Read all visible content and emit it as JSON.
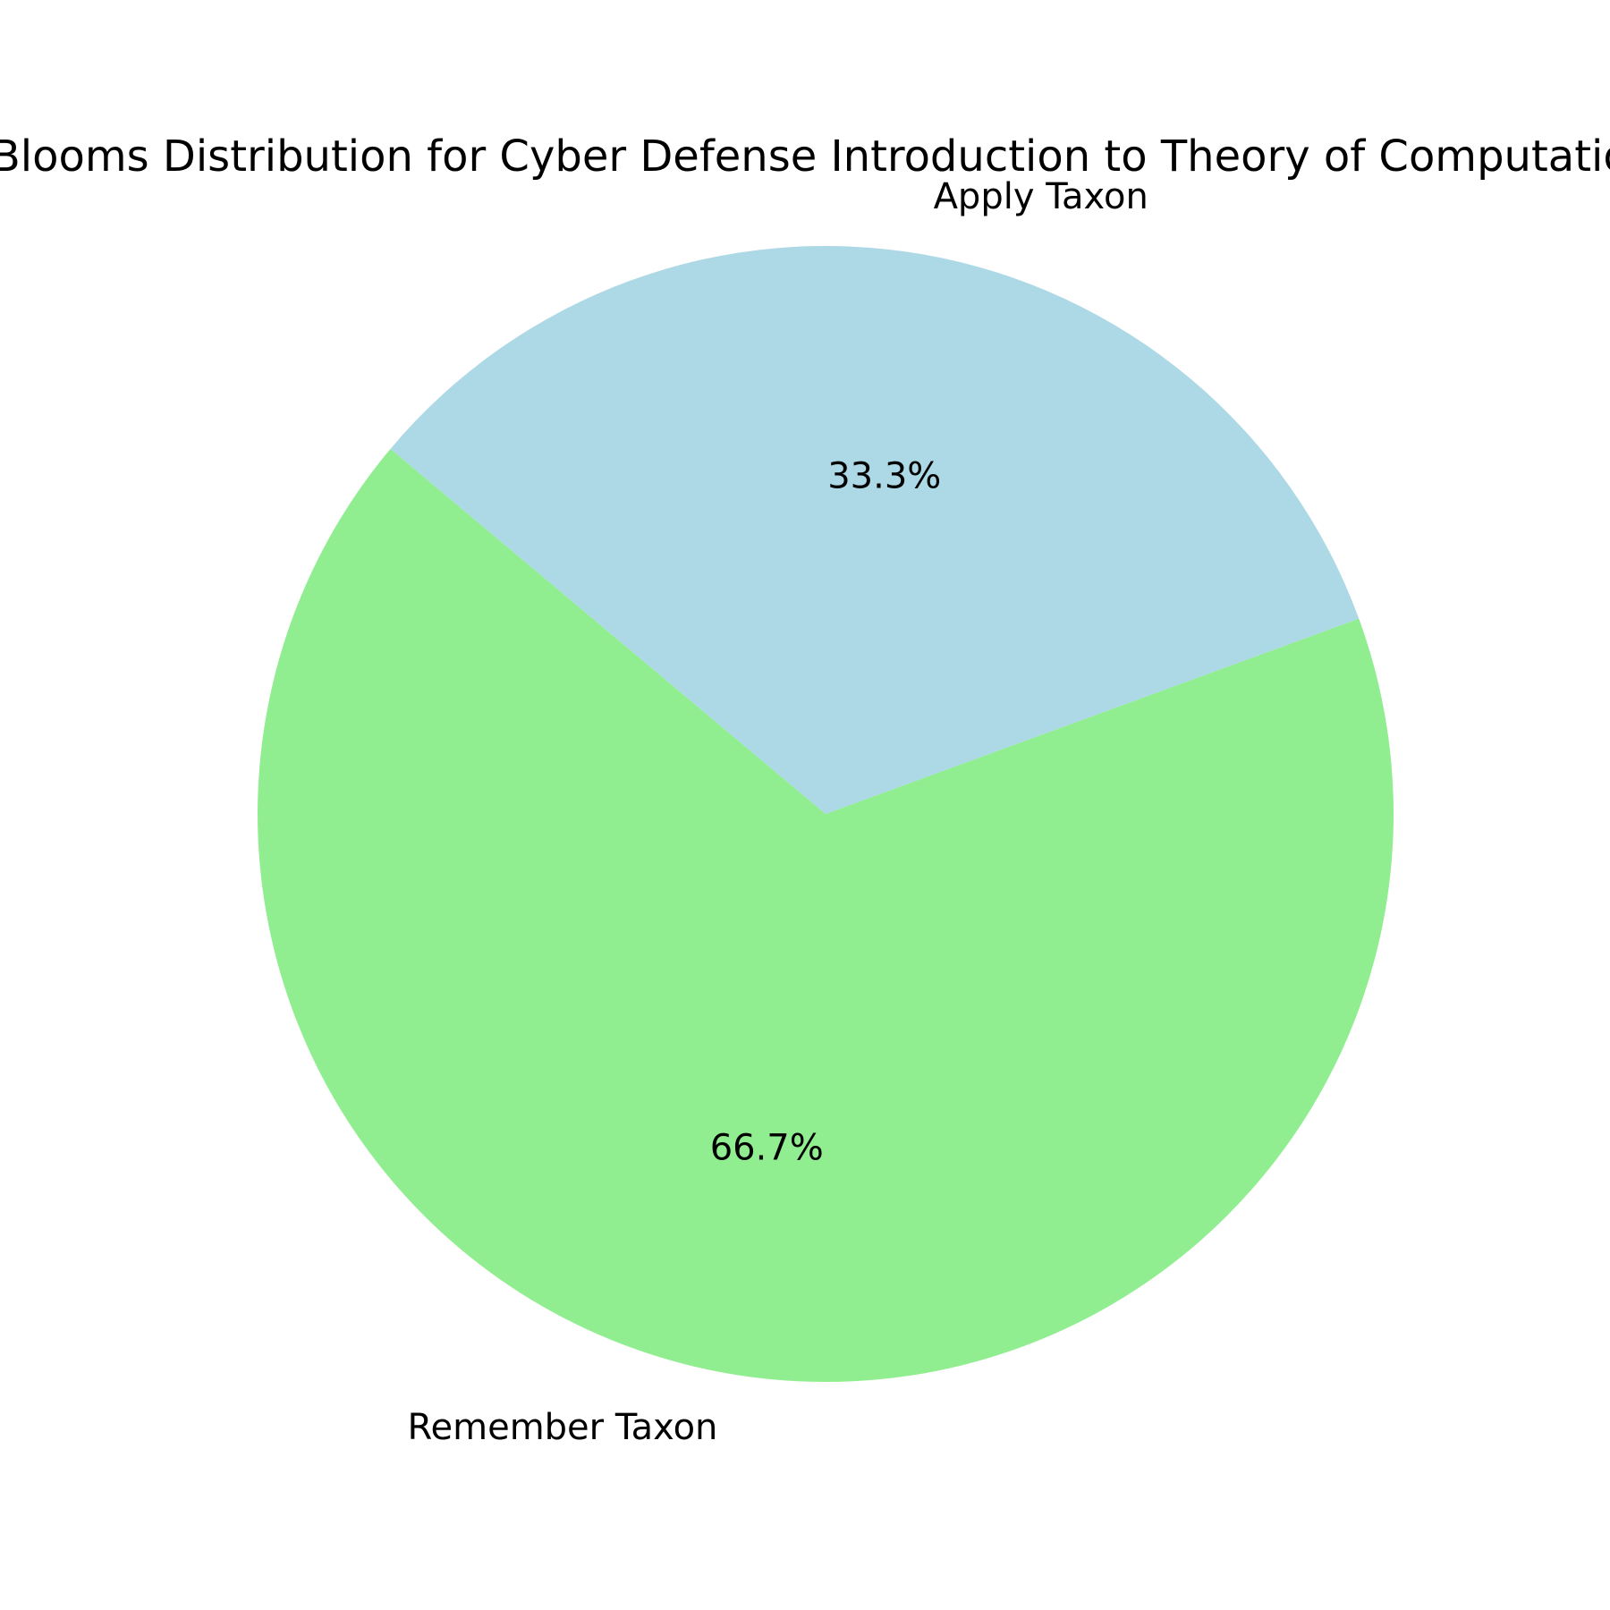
{
  "chart_data": {
    "type": "pie",
    "title": "Blooms Distribution for Cyber Defense Introduction to Theory of Computation",
    "slices": [
      {
        "label": "Remember Taxon",
        "value": 66.7,
        "percent_label": "66.7%",
        "color": "#90ee90"
      },
      {
        "label": "Apply Taxon",
        "value": 33.3,
        "percent_label": "33.3%",
        "color": "#add8e6"
      }
    ],
    "start_angle_deg": 140,
    "direction": "counterclockwise",
    "legend": "none"
  }
}
